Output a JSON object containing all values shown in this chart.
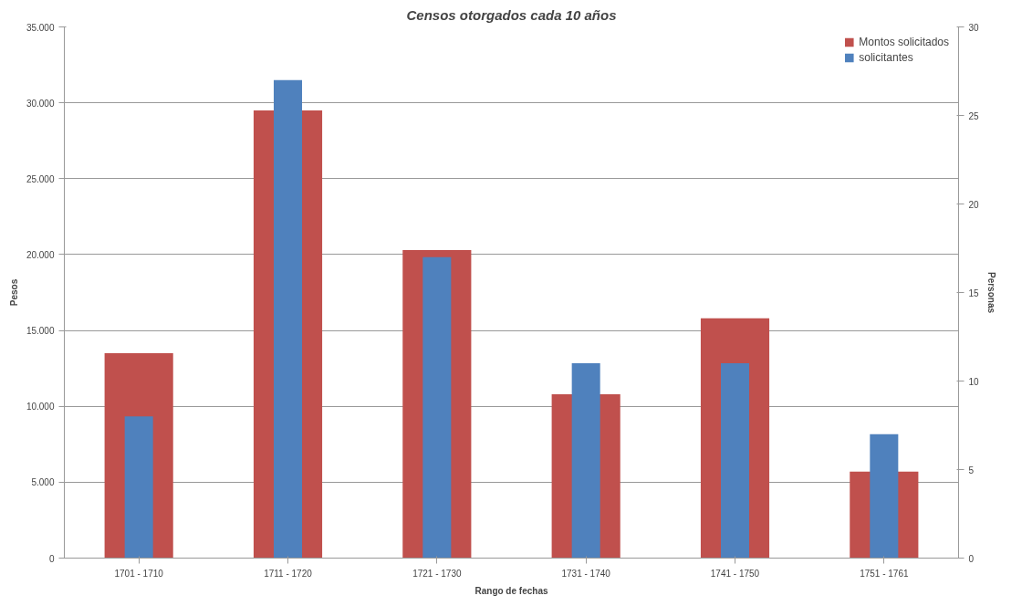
{
  "chart_data": {
    "type": "bar",
    "title": "Censos otorgados cada 10 años",
    "xlabel": "Rango de fechas",
    "ylabel": "Pesos",
    "y2label": "Personas",
    "categories": [
      "1701 - 1710",
      "1711 - 1720",
      "1721 - 1730",
      "1731 - 1740",
      "1741 - 1750",
      "1751 - 1761"
    ],
    "series": [
      {
        "name": "Montos solicitados",
        "color": "#c0504d",
        "values": [
          13500,
          29500,
          20300,
          10800,
          15800,
          5700
        ]
      },
      {
        "name": "solicitantes",
        "color": "#4f81bd",
        "axis": "y2",
        "values": [
          8,
          27,
          17,
          11,
          11,
          7
        ]
      }
    ],
    "ylim": [
      0,
      35000
    ],
    "yticks": [
      {
        "value": 0,
        "label": "0"
      },
      {
        "value": 5000,
        "label": "5.000"
      },
      {
        "value": 10000,
        "label": "10.000"
      },
      {
        "value": 15000,
        "label": "15.000"
      },
      {
        "value": 20000,
        "label": "20.000"
      },
      {
        "value": 25000,
        "label": "25.000"
      },
      {
        "value": 30000,
        "label": "30.000"
      },
      {
        "value": 35000,
        "label": "35.000"
      }
    ],
    "y2lim": [
      0,
      30
    ],
    "y2ticks": [
      0,
      5,
      10,
      15,
      20,
      25,
      30
    ],
    "grid": "y",
    "legend": "top right"
  }
}
